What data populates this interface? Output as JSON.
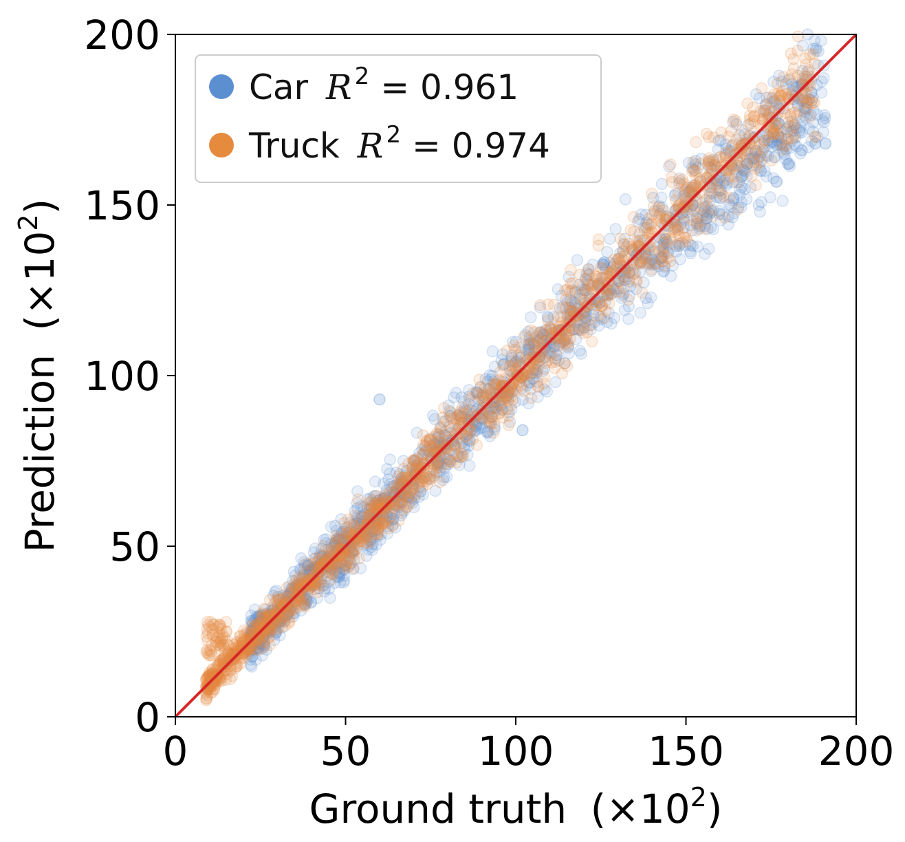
{
  "chart_data": {
    "type": "scatter",
    "title": "",
    "xlabel": "Ground truth",
    "xlabel_unit": "(×10",
    "xlabel_unit_exp": "2",
    "xlabel_unit_close": ")",
    "ylabel": "Prediction",
    "ylabel_unit": "(×10",
    "ylabel_unit_exp": "2",
    "ylabel_unit_close": ")",
    "xlim": [
      0,
      200
    ],
    "ylim": [
      0,
      200
    ],
    "xticks": [
      "0",
      "50",
      "100",
      "150",
      "200"
    ],
    "yticks": [
      "0",
      "50",
      "100",
      "150",
      "200"
    ],
    "grid": false,
    "legend_position": "top-left",
    "reference_line": {
      "from": [
        0,
        0
      ],
      "to": [
        200,
        200
      ],
      "color": "#d62728"
    },
    "series": [
      {
        "name": "Car",
        "r2_symbol": "R",
        "r2_exp": "2",
        "r2_text": " = 0.961",
        "color": "#5b8fd0",
        "x_range": [
          22,
          191
        ],
        "relation": "y ≈ x with spread ~3 at low x rising to ~8 at high x; slightly under-predicted above x≈140",
        "points": [
          [
            24,
            22
          ],
          [
            27,
            25
          ],
          [
            30,
            28
          ],
          [
            33,
            30
          ],
          [
            36,
            38
          ],
          [
            40,
            43
          ],
          [
            44,
            46
          ],
          [
            48,
            52
          ],
          [
            52,
            48
          ],
          [
            56,
            55
          ],
          [
            60,
            62
          ],
          [
            64,
            58
          ],
          [
            68,
            72
          ],
          [
            72,
            66
          ],
          [
            76,
            80
          ],
          [
            80,
            74
          ],
          [
            84,
            88
          ],
          [
            88,
            84
          ],
          [
            92,
            96
          ],
          [
            96,
            90
          ],
          [
            100,
            104
          ],
          [
            104,
            98
          ],
          [
            108,
            112
          ],
          [
            112,
            106
          ],
          [
            116,
            118
          ],
          [
            120,
            114
          ],
          [
            124,
            122
          ],
          [
            128,
            124
          ],
          [
            132,
            128
          ],
          [
            136,
            136
          ],
          [
            140,
            134
          ],
          [
            144,
            140
          ],
          [
            148,
            138
          ],
          [
            152,
            150
          ],
          [
            156,
            146
          ],
          [
            160,
            158
          ],
          [
            164,
            152
          ],
          [
            168,
            162
          ],
          [
            172,
            160
          ],
          [
            176,
            164
          ],
          [
            180,
            162
          ],
          [
            184,
            166
          ],
          [
            188,
            168
          ],
          [
            191,
            168
          ],
          [
            60,
            93
          ],
          [
            102,
            84
          ]
        ]
      },
      {
        "name": "Truck",
        "r2_symbol": "R",
        "r2_exp": "2",
        "r2_text": " = 0.974",
        "color": "#e68a3e",
        "x_range": [
          9,
          188
        ],
        "relation": "y ≈ x with tight spread; cluster of over-predictions near x≈10–15, y≈20–28",
        "points": [
          [
            10,
            18
          ],
          [
            11,
            24
          ],
          [
            12,
            22
          ],
          [
            13,
            27
          ],
          [
            14,
            21
          ],
          [
            15,
            25
          ],
          [
            20,
            22
          ],
          [
            24,
            27
          ],
          [
            28,
            30
          ],
          [
            32,
            33
          ],
          [
            36,
            35
          ],
          [
            40,
            40
          ],
          [
            44,
            45
          ],
          [
            48,
            47
          ],
          [
            52,
            53
          ],
          [
            56,
            56
          ],
          [
            60,
            61
          ],
          [
            64,
            63
          ],
          [
            68,
            70
          ],
          [
            72,
            72
          ],
          [
            76,
            77
          ],
          [
            80,
            81
          ],
          [
            84,
            86
          ],
          [
            88,
            88
          ],
          [
            92,
            94
          ],
          [
            96,
            97
          ],
          [
            100,
            102
          ],
          [
            104,
            104
          ],
          [
            108,
            110
          ],
          [
            112,
            113
          ],
          [
            116,
            119
          ],
          [
            120,
            122
          ],
          [
            124,
            126
          ],
          [
            128,
            130
          ],
          [
            132,
            135
          ],
          [
            136,
            138
          ],
          [
            140,
            142
          ],
          [
            144,
            146
          ],
          [
            148,
            150
          ],
          [
            152,
            155
          ],
          [
            156,
            158
          ],
          [
            160,
            164
          ],
          [
            170,
            176
          ],
          [
            178,
            182
          ],
          [
            188,
            170
          ]
        ]
      }
    ]
  }
}
